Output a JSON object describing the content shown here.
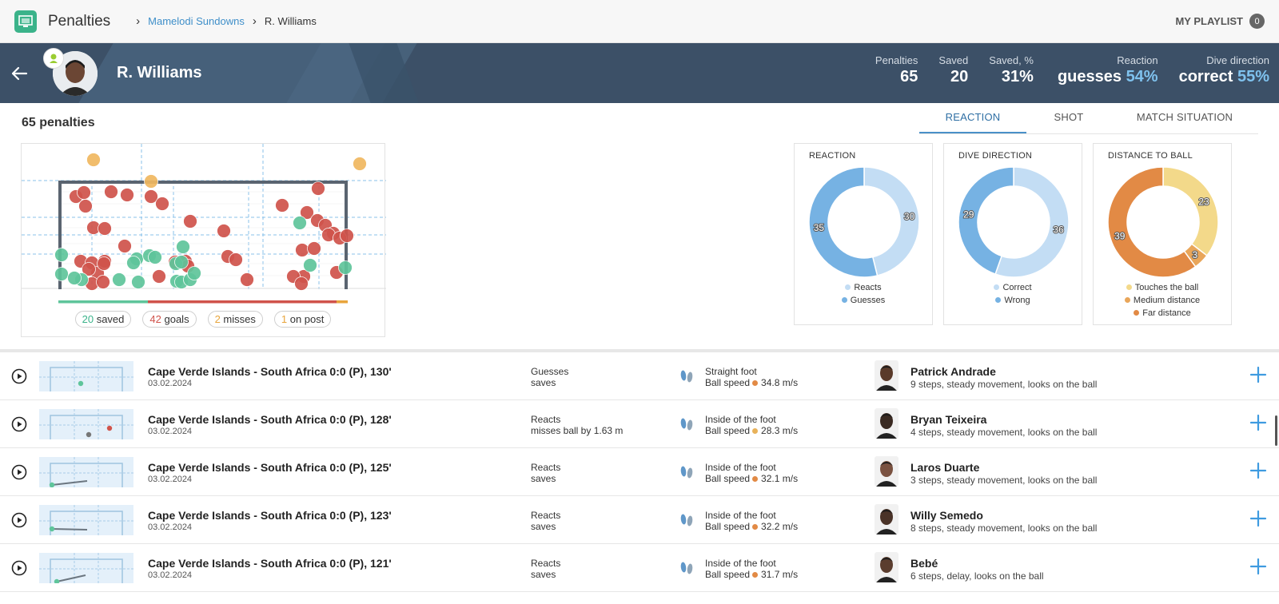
{
  "header": {
    "app_title": "Penalties",
    "breadcrumb": [
      "Mamelodi Sundowns",
      "R. Williams"
    ],
    "playlist_label": "MY PLAYLIST",
    "playlist_count": "0"
  },
  "player": {
    "name": "R. Williams",
    "stats": [
      {
        "label": "Penalties",
        "value": "65"
      },
      {
        "label": "Saved",
        "value": "20"
      },
      {
        "label": "Saved, %",
        "value": "31%"
      }
    ],
    "reaction": {
      "label": "Reaction",
      "word": "guesses",
      "pct": "54%"
    },
    "dive": {
      "label": "Dive direction",
      "word": "correct",
      "pct": "55%"
    }
  },
  "summary": {
    "title": "65 penalties",
    "tabs": [
      "REACTION",
      "SHOT",
      "MATCH SITUATION"
    ],
    "active_tab": "REACTION",
    "pills": [
      {
        "num": "20",
        "label": "saved",
        "color": "#3bb38a"
      },
      {
        "num": "42",
        "label": "goals",
        "color": "#d0534b"
      },
      {
        "num": "2",
        "label": "misses",
        "color": "#e8a53c"
      },
      {
        "num": "1",
        "label": "on post",
        "color": "#e8a53c"
      }
    ],
    "outcome_counts": {
      "saved": 20,
      "goals": 42,
      "misses": 2,
      "on_post": 1
    }
  },
  "chart_data": [
    {
      "type": "pie",
      "title": "REACTION",
      "categories": [
        "Reacts",
        "Guesses"
      ],
      "values": [
        30,
        35
      ],
      "colors": [
        "#c3ddf4",
        "#76b2e3"
      ]
    },
    {
      "type": "pie",
      "title": "DIVE DIRECTION",
      "categories": [
        "Correct",
        "Wrong"
      ],
      "values": [
        36,
        29
      ],
      "colors": [
        "#c3ddf4",
        "#76b2e3"
      ]
    },
    {
      "type": "pie",
      "title": "DISTANCE TO BALL",
      "categories": [
        "Touches the ball",
        "Medium distance",
        "Far distance"
      ],
      "values": [
        23,
        3,
        39
      ],
      "colors": [
        "#f3d98a",
        "#e9a65a",
        "#e28a45"
      ]
    }
  ],
  "penalties": [
    {
      "title": "Cape Verde Islands - South Africa 0:0 (P), 130'",
      "date": "03.02.2024",
      "reaction": "Guesses",
      "result": "saves",
      "foot": "Straight foot",
      "speed_label": "Ball speed",
      "speed": "34.8 m/s",
      "speed_color": "#e28a45",
      "taker": "Patrick Andrade",
      "taker_desc": "9 steps, steady movement, looks on the ball",
      "skin": "#5a3a2a"
    },
    {
      "title": "Cape Verde Islands - South Africa 0:0 (P), 128'",
      "date": "03.02.2024",
      "reaction": "Reacts",
      "result": "misses ball by 1.63 m",
      "foot": "Inside of the foot",
      "speed_label": "Ball speed",
      "speed": "28.3 m/s",
      "speed_color": "#e8b25a",
      "taker": "Bryan Teixeira",
      "taker_desc": "4 steps, steady movement, looks on the ball",
      "skin": "#3a2a22"
    },
    {
      "title": "Cape Verde Islands - South Africa 0:0 (P), 125'",
      "date": "03.02.2024",
      "reaction": "Reacts",
      "result": "saves",
      "foot": "Inside of the foot",
      "speed_label": "Ball speed",
      "speed": "32.1 m/s",
      "speed_color": "#e28a45",
      "taker": "Laros Duarte",
      "taker_desc": "3 steps, steady movement, looks on the ball",
      "skin": "#7a5140"
    },
    {
      "title": "Cape Verde Islands - South Africa 0:0 (P), 123'",
      "date": "03.02.2024",
      "reaction": "Reacts",
      "result": "saves",
      "foot": "Inside of the foot",
      "speed_label": "Ball speed",
      "speed": "32.2 m/s",
      "speed_color": "#e28a45",
      "taker": "Willy Semedo",
      "taker_desc": "8 steps, steady movement, looks on the ball",
      "skin": "#4a3328"
    },
    {
      "title": "Cape Verde Islands - South Africa 0:0 (P), 121'",
      "date": "03.02.2024",
      "reaction": "Reacts",
      "result": "saves",
      "foot": "Inside of the foot",
      "speed_label": "Ball speed",
      "speed": "31.7 m/s",
      "speed_color": "#e28a45",
      "taker": "Bebé",
      "taker_desc": "6 steps, delay, looks on the ball",
      "skin": "#5b3d2e"
    }
  ]
}
